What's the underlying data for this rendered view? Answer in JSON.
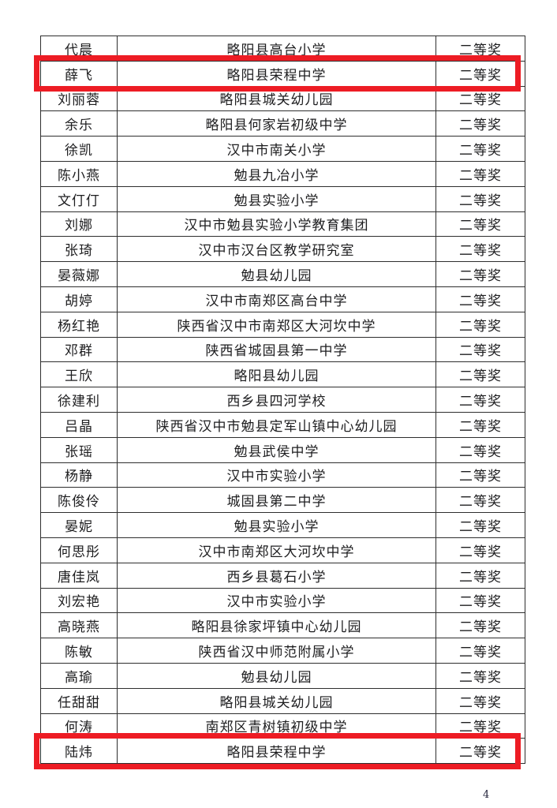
{
  "page": {
    "number": "4",
    "background_color": "#ffffff"
  },
  "highlight": {
    "color": "#ed1c24"
  },
  "table": {
    "columns": [
      "name",
      "school",
      "award"
    ],
    "rows": [
      {
        "name": "代晨",
        "school": "略阳县高台小学",
        "award": "二等奖",
        "highlighted": false
      },
      {
        "name": "薛飞",
        "school": "略阳县荣程中学",
        "award": "二等奖",
        "highlighted": true
      },
      {
        "name": "刘丽蓉",
        "school": "略阳县城关幼儿园",
        "award": "二等奖",
        "highlighted": false
      },
      {
        "name": "余乐",
        "school": "略阳县何家岩初级中学",
        "award": "二等奖",
        "highlighted": false
      },
      {
        "name": "徐凯",
        "school": "汉中市南关小学",
        "award": "二等奖",
        "highlighted": false
      },
      {
        "name": "陈小燕",
        "school": "勉县九冶小学",
        "award": "二等奖",
        "highlighted": false
      },
      {
        "name": "文仃仃",
        "school": "勉县实验小学",
        "award": "二等奖",
        "highlighted": false
      },
      {
        "name": "刘娜",
        "school": "汉中市勉县实验小学教育集团",
        "award": "二等奖",
        "highlighted": false
      },
      {
        "name": "张琦",
        "school": "汉中市汉台区教学研究室",
        "award": "二等奖",
        "highlighted": false
      },
      {
        "name": "晏薇娜",
        "school": "勉县幼儿园",
        "award": "二等奖",
        "highlighted": false
      },
      {
        "name": "胡婷",
        "school": "汉中市南郑区高台中学",
        "award": "二等奖",
        "highlighted": false
      },
      {
        "name": "杨红艳",
        "school": "陕西省汉中市南郑区大河坎中学",
        "award": "二等奖",
        "highlighted": false
      },
      {
        "name": "邓群",
        "school": "陕西省城固县第一中学",
        "award": "二等奖",
        "highlighted": false
      },
      {
        "name": "王欣",
        "school": "略阳县幼儿园",
        "award": "二等奖",
        "highlighted": false
      },
      {
        "name": "徐建利",
        "school": "西乡县四河学校",
        "award": "二等奖",
        "highlighted": false
      },
      {
        "name": "吕晶",
        "school": "陕西省汉中市勉县定军山镇中心幼儿园",
        "award": "二等奖",
        "highlighted": false
      },
      {
        "name": "张瑶",
        "school": "勉县武侯中学",
        "award": "二等奖",
        "highlighted": false
      },
      {
        "name": "杨静",
        "school": "汉中市实验小学",
        "award": "二等奖",
        "highlighted": false
      },
      {
        "name": "陈俊伶",
        "school": "城固县第二中学",
        "award": "二等奖",
        "highlighted": false
      },
      {
        "name": "晏妮",
        "school": "勉县实验小学",
        "award": "二等奖",
        "highlighted": false
      },
      {
        "name": "何思彤",
        "school": "汉中市南郑区大河坎中学",
        "award": "二等奖",
        "highlighted": false
      },
      {
        "name": "唐佳岚",
        "school": "西乡县葛石小学",
        "award": "二等奖",
        "highlighted": false
      },
      {
        "name": "刘宏艳",
        "school": "汉中市实验小学",
        "award": "二等奖",
        "highlighted": false
      },
      {
        "name": "高晓燕",
        "school": "略阳县徐家坪镇中心幼儿园",
        "award": "二等奖",
        "highlighted": false
      },
      {
        "name": "陈敏",
        "school": "陕西省汉中师范附属小学",
        "award": "二等奖",
        "highlighted": false
      },
      {
        "name": "高瑜",
        "school": "勉县幼儿园",
        "award": "二等奖",
        "highlighted": false
      },
      {
        "name": "任甜甜",
        "school": "略阳县城关幼儿园",
        "award": "二等奖",
        "highlighted": false
      },
      {
        "name": "何涛",
        "school": "南郑区青树镇初级中学",
        "award": "二等奖",
        "highlighted": false
      },
      {
        "name": "陆炜",
        "school": "略阳县荣程中学",
        "award": "二等奖",
        "highlighted": true
      }
    ]
  }
}
